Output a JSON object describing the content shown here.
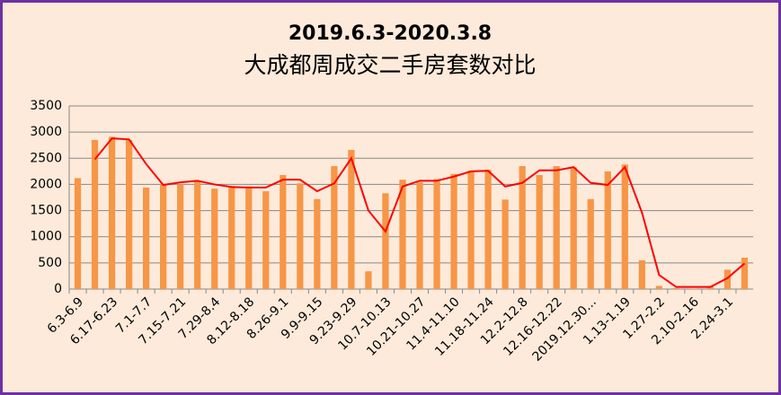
{
  "chart_data": {
    "type": "bar-line",
    "title": "2019.6.3-2020.3.8",
    "subtitle": "大成都周成交二手房套数对比",
    "categories": [
      "6.3-6.9",
      null,
      "6.17-6.23",
      null,
      "7.1-7.7",
      null,
      "7.15-7.21",
      null,
      "7.29-8.4",
      null,
      "8.12-8.18",
      null,
      "8.26-9.1",
      null,
      "9.9-9.15",
      null,
      "9.23-9.29",
      null,
      "10.7-10.13",
      null,
      "10.21-10.27",
      null,
      "11.4-11.10",
      null,
      "11.18-11.24",
      null,
      "12.2-12.8",
      null,
      "12.16-12.22",
      null,
      "2019.12.30...",
      null,
      "1.13-1.19",
      null,
      "1.27-2.2",
      null,
      "2.10-2.16",
      null,
      "2.24-3.1",
      null
    ],
    "series": [
      {
        "kind": "bar",
        "color": "#f79646",
        "values": [
          2120,
          2850,
          2910,
          2850,
          1940,
          2000,
          2000,
          2060,
          1920,
          1970,
          1930,
          1870,
          2180,
          2020,
          1720,
          2350,
          2660,
          340,
          1830,
          2090,
          2040,
          2100,
          2200,
          2260,
          2280,
          1710,
          2350,
          2180,
          2350,
          2330,
          1720,
          2250,
          2380,
          550,
          60,
          20,
          10,
          60,
          370,
          600
        ]
      },
      {
        "kind": "line",
        "color": "#ff0000",
        "values": [
          null,
          2480,
          2880,
          2860,
          2390,
          1990,
          2040,
          2070,
          2000,
          1950,
          1940,
          1940,
          2090,
          2090,
          1870,
          2020,
          2500,
          1500,
          1100,
          1960,
          2070,
          2070,
          2150,
          2250,
          2260,
          1960,
          2030,
          2270,
          2270,
          2330,
          2030,
          1990,
          2330,
          1460,
          270,
          40,
          40,
          40,
          210,
          490
        ]
      }
    ],
    "ylim": [
      0,
      3500
    ],
    "yticks": [
      0,
      500,
      1000,
      1500,
      2000,
      2500,
      3000,
      3500
    ],
    "grid": true
  }
}
